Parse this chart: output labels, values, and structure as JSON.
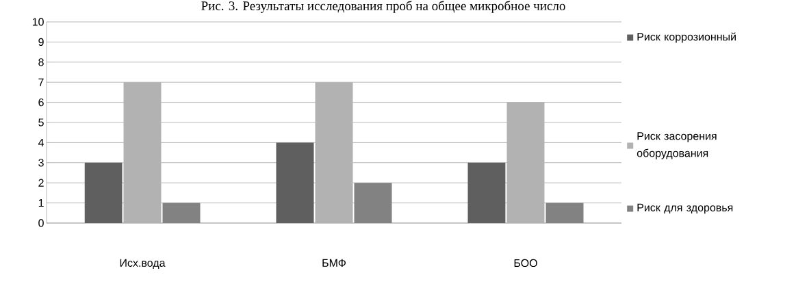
{
  "chart_data": {
    "type": "bar",
    "title": "Рис. 3. Результаты исследования проб на общее микробное число",
    "categories": [
      "Исх.вода",
      "БМФ",
      "БОО"
    ],
    "series": [
      {
        "name": "Риск коррозионный",
        "color": "#5f5f5f",
        "values": [
          3,
          4,
          3
        ]
      },
      {
        "name": "Риск засорения оборудования",
        "color": "#b2b2b2",
        "values": [
          7,
          7,
          6
        ]
      },
      {
        "name": "Риск для здоровья",
        "color": "#828282",
        "values": [
          1,
          2,
          1
        ]
      }
    ],
    "ylim": [
      0,
      10
    ],
    "yticks": [
      0,
      1,
      2,
      3,
      4,
      5,
      6,
      7,
      8,
      9,
      10
    ],
    "grid": "y",
    "legend": "right"
  }
}
